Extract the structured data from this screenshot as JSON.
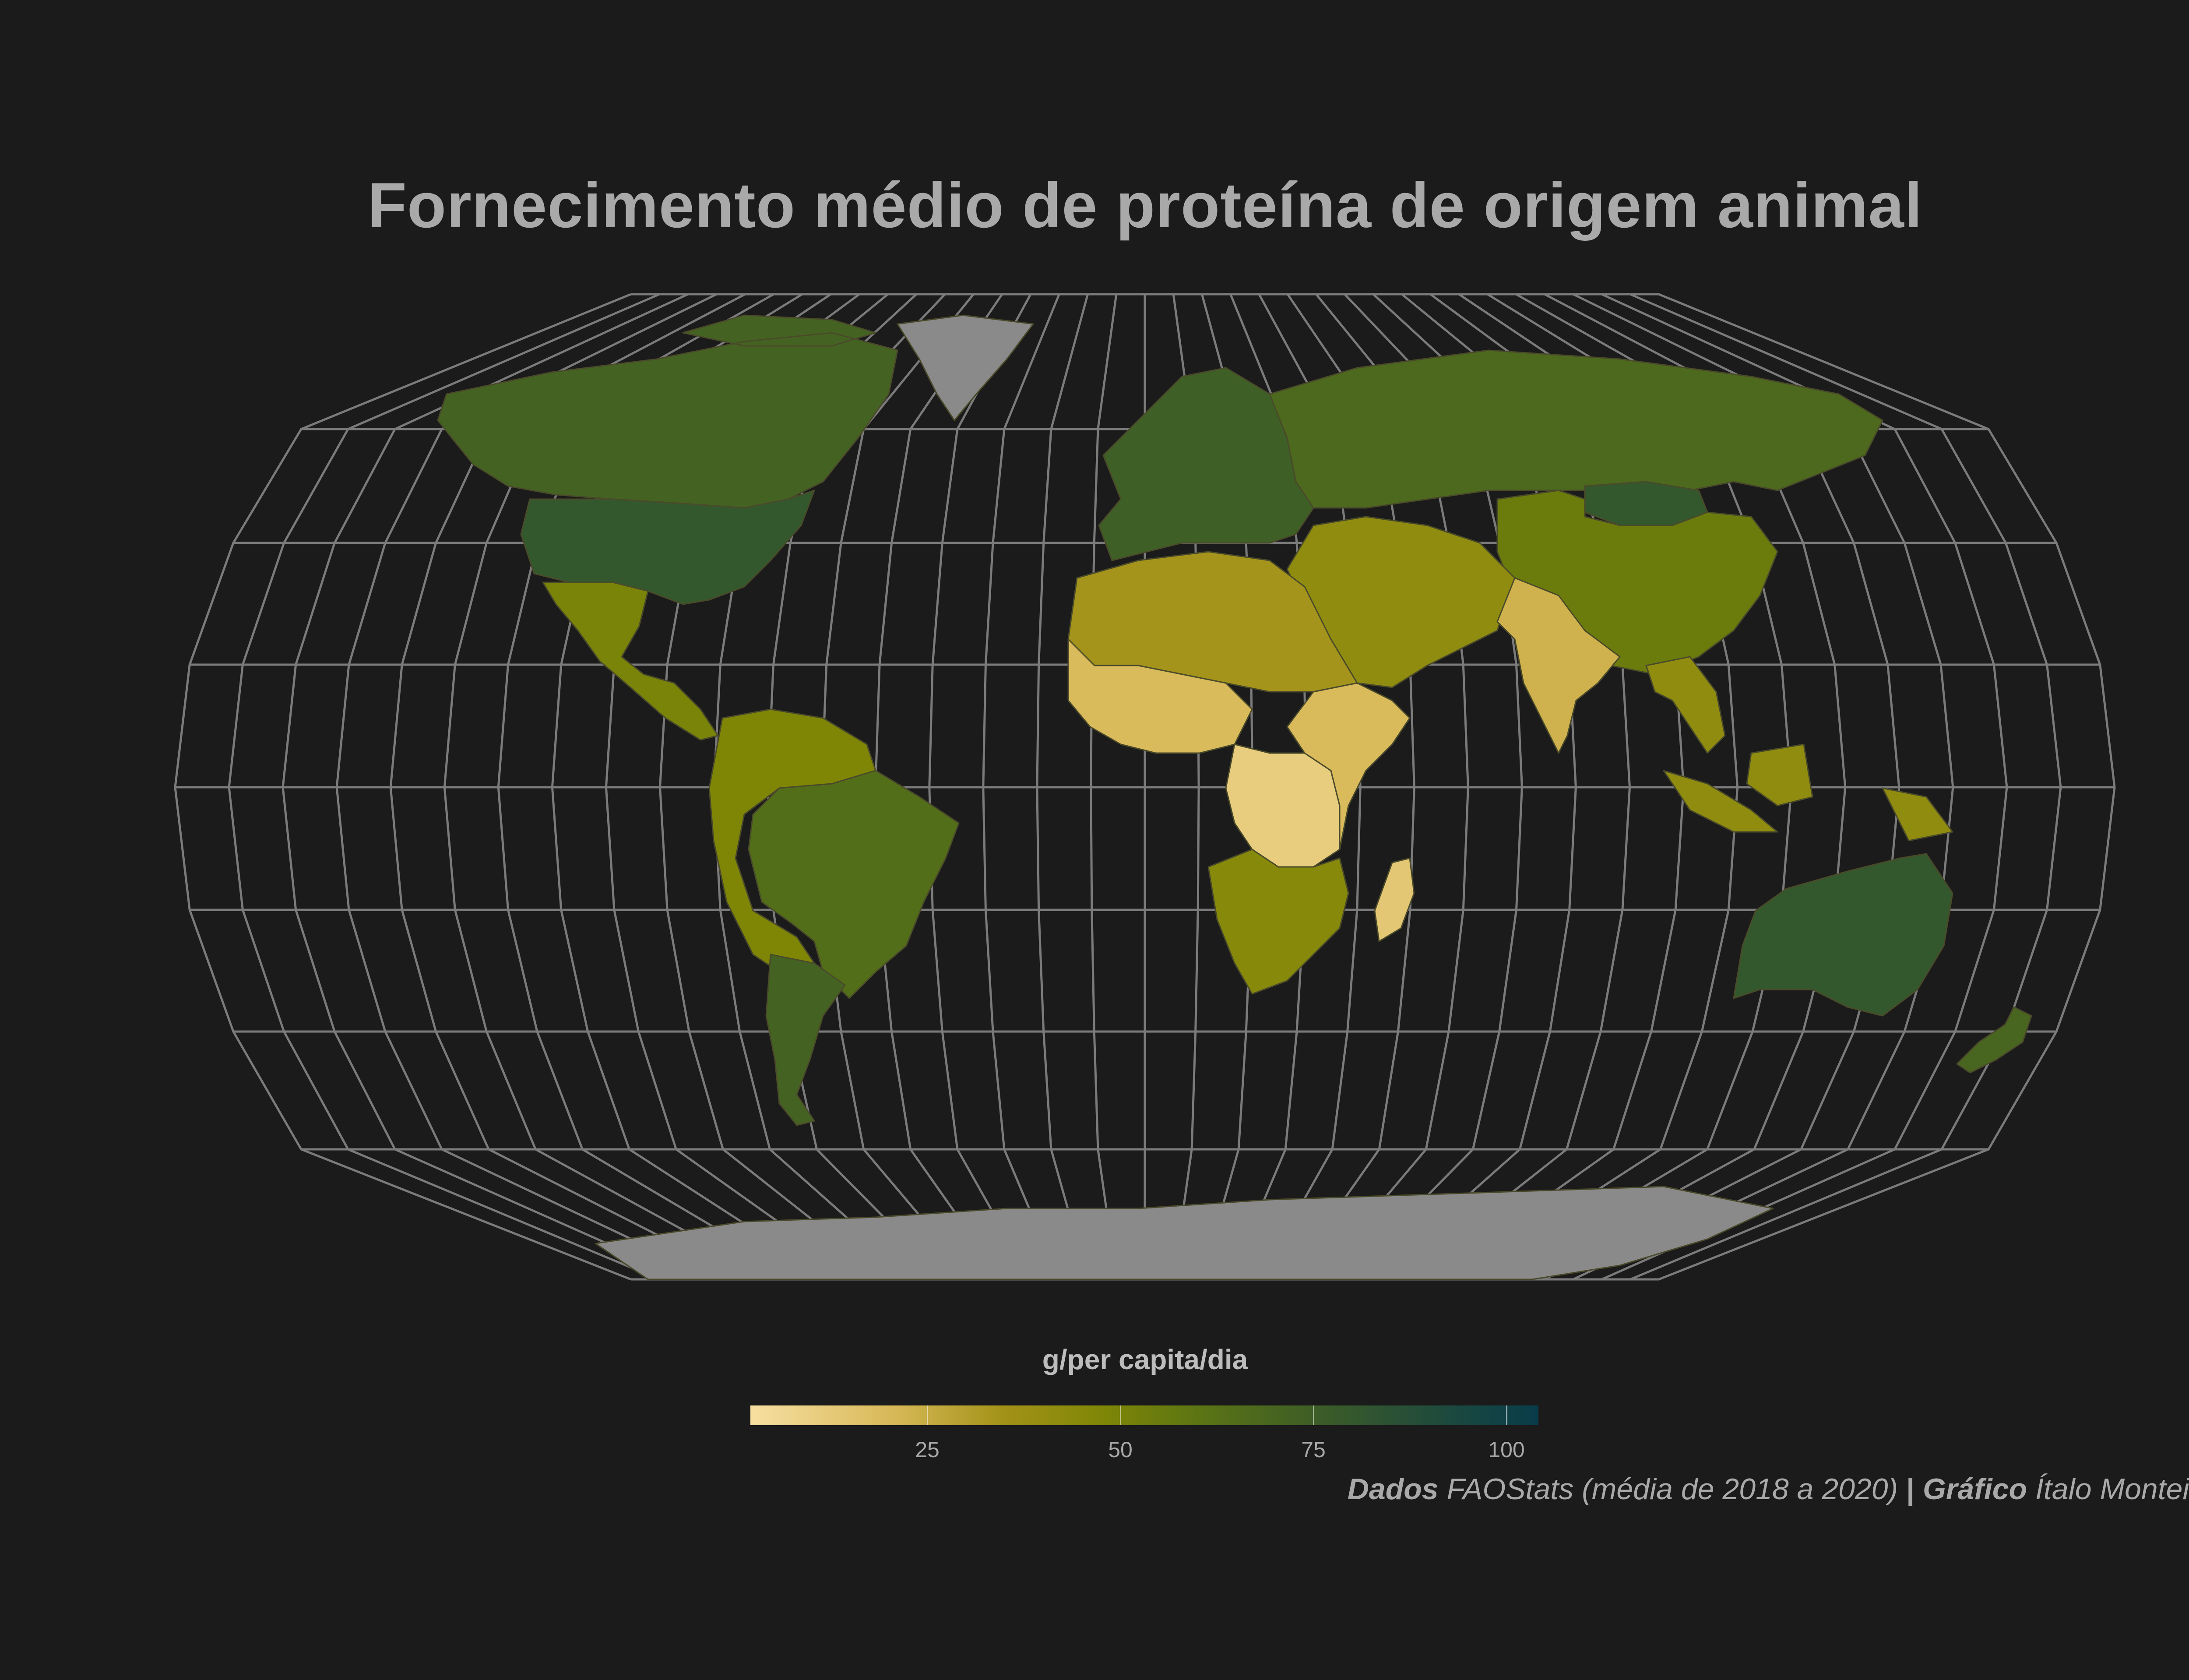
{
  "title": "Fornecimento médio de proteína de origem animal",
  "legend": {
    "title": "g/per capita/dia",
    "ticks": [
      "25",
      "50",
      "75",
      "100"
    ],
    "range": [
      0,
      102
    ],
    "colors": [
      "#f7dfa2",
      "#d8b958",
      "#a39218",
      "#7e8606",
      "#5b7414",
      "#406024",
      "#2e5332",
      "#1a4840",
      "#083c4a"
    ],
    "missing_color": "#8a8a8a"
  },
  "caption": {
    "source_label": "Dados",
    "source_text": "FAOStats (média de 2018 a 2020)",
    "separator": "|",
    "author_label": "Gráfico",
    "author_text": "Ítalo Monteiro"
  },
  "colors": {
    "background": "#1b1b1b",
    "graticule": "#8c8c8c",
    "text": "#a9a9a9"
  },
  "map": {
    "projection": "Robinson-like world",
    "regions": [
      {
        "name": "north-america-north",
        "value": 62
      },
      {
        "name": "greenland",
        "value": null
      },
      {
        "name": "usa",
        "value": 72
      },
      {
        "name": "mexico-central-america",
        "value": 40
      },
      {
        "name": "south-america-north",
        "value": 38
      },
      {
        "name": "brazil",
        "value": 55
      },
      {
        "name": "argentina",
        "value": 62
      },
      {
        "name": "europe",
        "value": 65
      },
      {
        "name": "russia",
        "value": 58
      },
      {
        "name": "mongolia",
        "value": 72
      },
      {
        "name": "china",
        "value": 45
      },
      {
        "name": "middle-east",
        "value": 32
      },
      {
        "name": "india",
        "value": 15
      },
      {
        "name": "southeast-asia",
        "value": 32
      },
      {
        "name": "north-africa",
        "value": 25
      },
      {
        "name": "west-africa",
        "value": 12
      },
      {
        "name": "central-africa",
        "value": 6
      },
      {
        "name": "east-africa",
        "value": 12
      },
      {
        "name": "southern-africa",
        "value": 35
      },
      {
        "name": "madagascar",
        "value": 8
      },
      {
        "name": "australia",
        "value": 72
      },
      {
        "name": "new-zealand",
        "value": 60
      },
      {
        "name": "antarctica",
        "value": null
      }
    ]
  }
}
